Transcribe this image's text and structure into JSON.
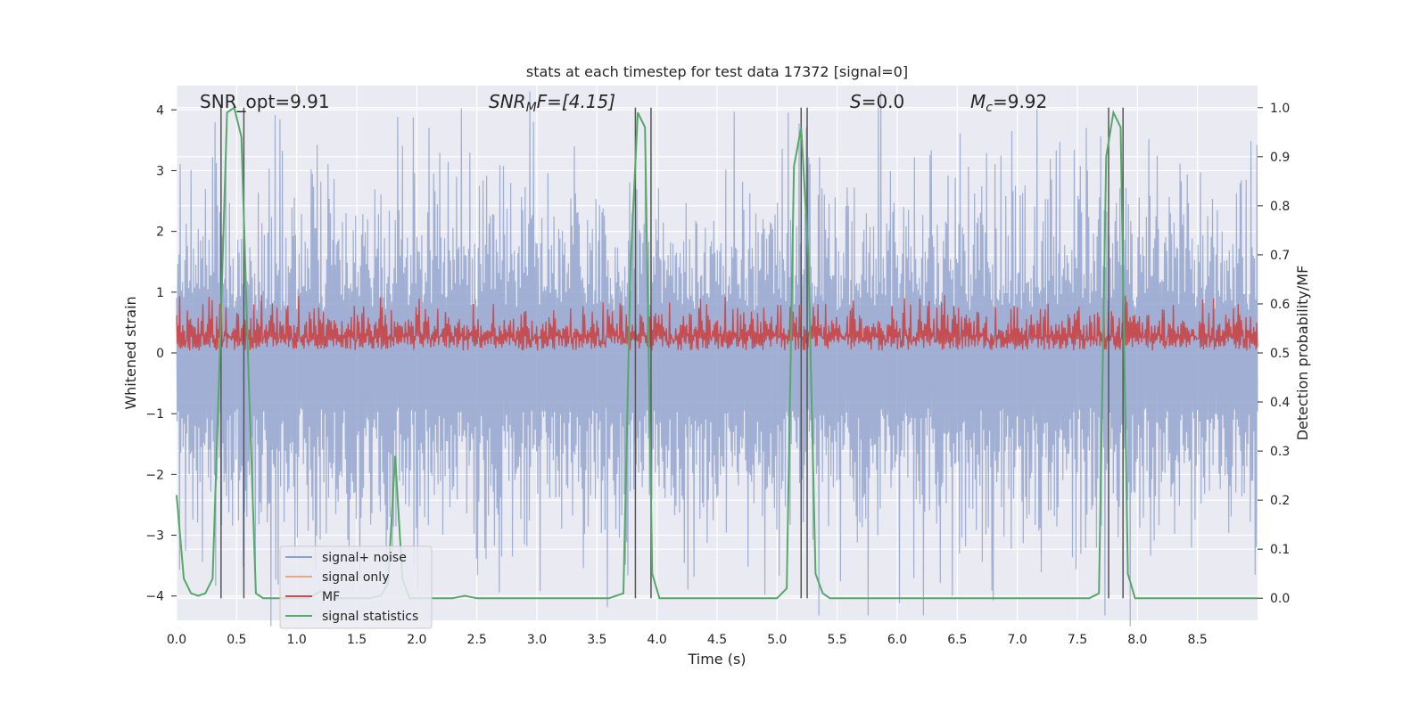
{
  "chart_data": {
    "type": "line",
    "title": "stats at each timestep for test data 17372 [signal=0]",
    "xlabel": "Time (s)",
    "ylabel": "Whitened strain",
    "ylabel_right": "Detection probability/MF",
    "xlim": [
      0,
      9
    ],
    "ylim": [
      -4.4,
      4.4
    ],
    "ylim_right": [
      -0.045,
      1.045
    ],
    "x_ticks": [
      "0.0",
      "0.5",
      "1.0",
      "1.5",
      "2.0",
      "2.5",
      "3.0",
      "3.5",
      "4.0",
      "4.5",
      "5.0",
      "5.5",
      "6.0",
      "6.5",
      "7.0",
      "7.5",
      "8.0",
      "8.5"
    ],
    "y_ticks": [
      "4",
      "3",
      "2",
      "1",
      "0",
      "−1",
      "−2",
      "−3",
      "−4"
    ],
    "y_ticks_right": [
      "1.0",
      "0.9",
      "0.8",
      "0.7",
      "0.6",
      "0.5",
      "0.4",
      "0.3",
      "0.2",
      "0.1",
      "0.0"
    ],
    "annotations": {
      "snr_opt": "SNR_opt=9.91",
      "snr_mf_main": "SNR",
      "snr_mf_sub": "M",
      "snr_mf_rest": "F=[4.15]",
      "s_main": "S",
      "s_rest": "=0.0",
      "mc_main": "M",
      "mc_sub": "c",
      "mc_rest": "=9.92"
    },
    "series": [
      {
        "name": "signal+ noise",
        "color": "#8da0cb",
        "style": "dense noise, roughly symmetric about 0, peaks to about +3.5 and down to about −4",
        "envelope_typical_low": -2.2,
        "envelope_typical_high": 2.2,
        "peak_high": 3.8,
        "peak_low": -4.0
      },
      {
        "name": "signal only",
        "color": "#e8a68a",
        "values": []
      },
      {
        "name": "MF",
        "color": "#c44e52",
        "axis": "right",
        "baseline": 0.5,
        "typical_high": 0.6,
        "peak_high": 0.62
      },
      {
        "name": "signal statistics",
        "color": "#55a868",
        "axis": "right",
        "x": [
          0.0,
          0.06,
          0.12,
          0.18,
          0.24,
          0.3,
          0.36,
          0.42,
          0.48,
          0.54,
          0.6,
          0.66,
          0.72,
          0.78,
          0.84,
          0.9,
          1.0,
          1.1,
          1.2,
          1.3,
          1.4,
          1.5,
          1.6,
          1.7,
          1.76,
          1.82,
          1.88,
          1.94,
          2.0,
          2.1,
          2.2,
          2.3,
          2.4,
          2.5,
          2.6,
          2.8,
          3.0,
          3.2,
          3.4,
          3.6,
          3.72,
          3.78,
          3.84,
          3.9,
          3.96,
          4.02,
          4.1,
          4.2,
          4.4,
          4.6,
          4.8,
          5.0,
          5.08,
          5.14,
          5.2,
          5.26,
          5.32,
          5.38,
          5.44,
          5.5,
          5.6,
          5.8,
          6.0,
          6.4,
          6.8,
          7.2,
          7.6,
          7.68,
          7.74,
          7.8,
          7.86,
          7.92,
          7.98,
          8.04,
          8.2,
          8.6,
          9.0
        ],
        "values": [
          0.21,
          0.04,
          0.01,
          0.005,
          0.01,
          0.04,
          0.5,
          0.99,
          1.0,
          0.94,
          0.45,
          0.01,
          0.0,
          0.0,
          0.0,
          0.0,
          0.0,
          0.0,
          0.015,
          0.0,
          0.0,
          0.0,
          0.0,
          0.005,
          0.03,
          0.29,
          0.04,
          0.0,
          0.0,
          0.0,
          0.0,
          0.0,
          0.005,
          0.0,
          0.0,
          0.0,
          0.0,
          0.0,
          0.0,
          0.0,
          0.01,
          0.68,
          0.99,
          0.96,
          0.05,
          0.0,
          0.0,
          0.0,
          0.0,
          0.0,
          0.0,
          0.0,
          0.02,
          0.88,
          0.96,
          0.7,
          0.05,
          0.01,
          0.0,
          0.0,
          0.0,
          0.0,
          0.0,
          0.0,
          0.0,
          0.0,
          0.0,
          0.01,
          0.9,
          0.99,
          0.96,
          0.05,
          0.0,
          0.0,
          0.0,
          0.0,
          0.0
        ]
      }
    ],
    "vertical_markers": [
      0.37,
      0.56,
      3.82,
      3.95,
      5.2,
      5.25,
      7.76,
      7.88
    ],
    "legend": {
      "placement": "lower-left",
      "entries": [
        "signal+ noise",
        "signal only",
        "MF",
        "signal statistics"
      ]
    },
    "grid": true,
    "colors": {
      "background": "#eaeaf2",
      "grid": "#ffffff",
      "marker": "#555555"
    }
  }
}
